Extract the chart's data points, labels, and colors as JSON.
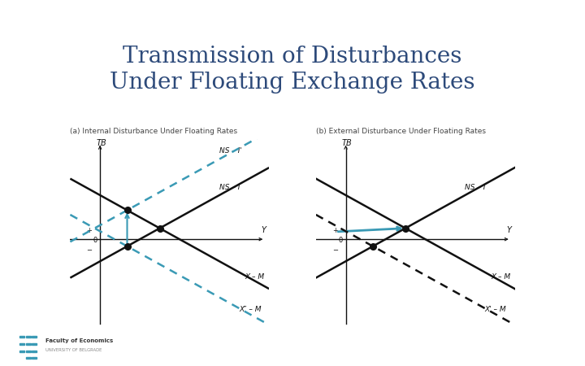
{
  "title_line1": "Transmission of Disturbances",
  "title_line2": "Under Floating Exchange Rates",
  "title_color": "#2d4a7a",
  "title_fontsize": 20,
  "background_color": "#ffffff",
  "header_color": "#4a8fa0",
  "panel_a_title": "(a) Internal Disturbance Under Floating Rates",
  "panel_b_title": "(b) External Disturbance Under Floating Rates",
  "panel_title_fontsize": 6.5,
  "axis_label_fontsize": 7,
  "line_label_fontsize": 6.5,
  "line_color_black": "#111111",
  "line_color_cyan": "#3a9ab5",
  "dot_color": "#111111"
}
